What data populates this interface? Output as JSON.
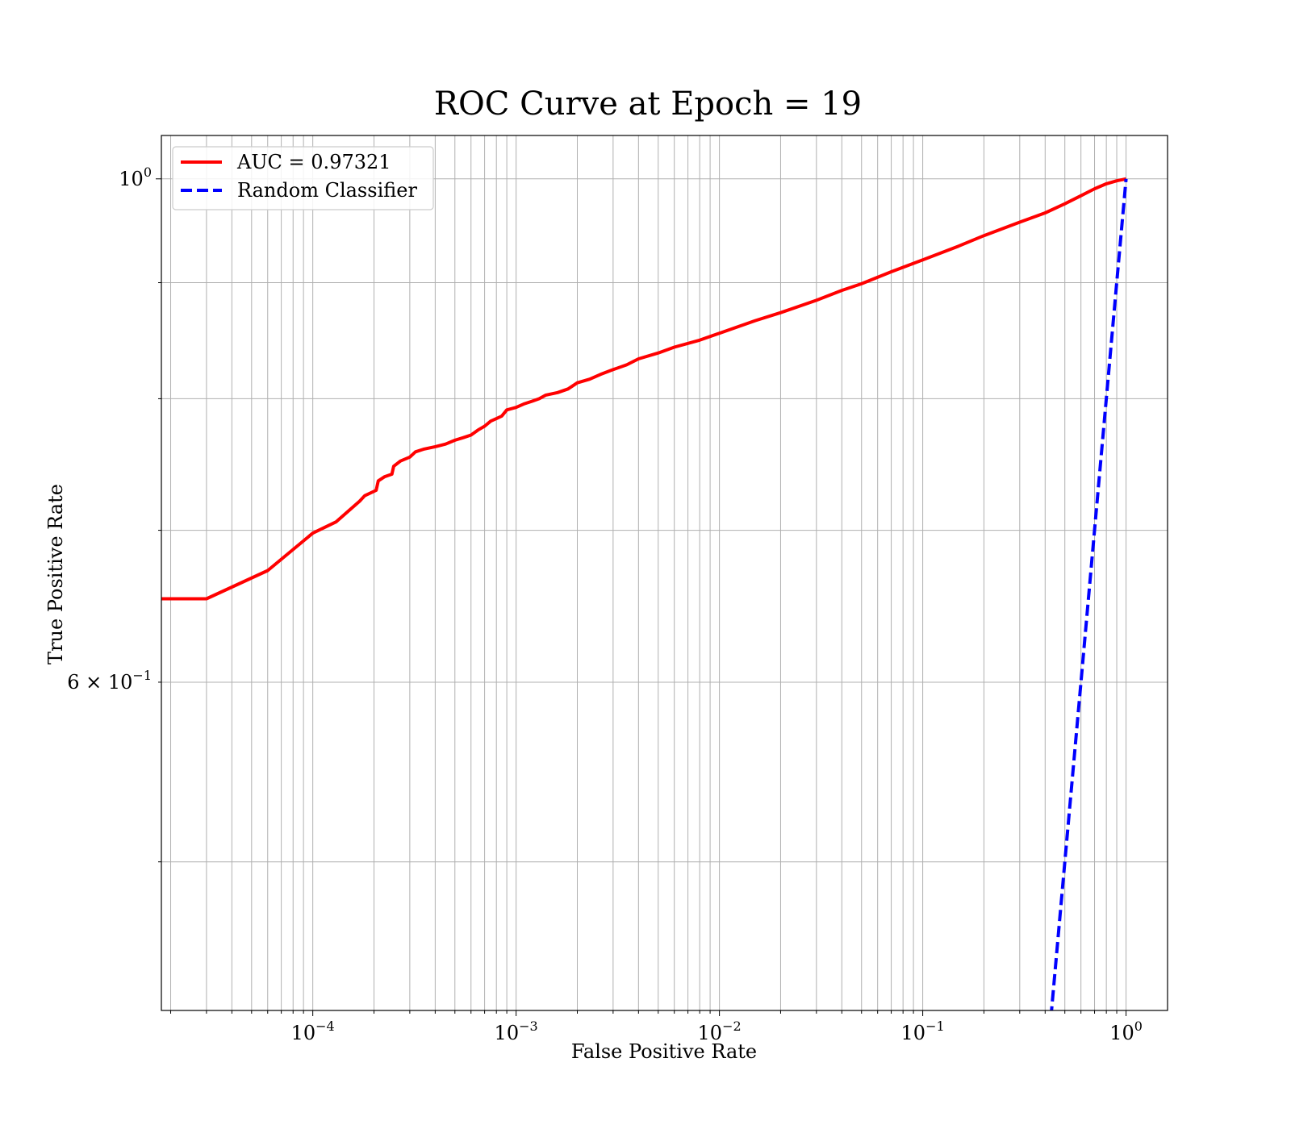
{
  "chart_data": {
    "type": "line",
    "title": "ROC Curve at Epoch = 19",
    "xlabel": "False Positive Rate",
    "ylabel": "True Positive Rate",
    "xscale": "log",
    "yscale": "log",
    "xlim": [
      1.8e-05,
      1.6
    ],
    "ylim": [
      0.43,
      1.045
    ],
    "grid": true,
    "grid_minor": true,
    "legend_position": "top-left",
    "x_ticks": [
      {
        "base": "10",
        "exp": "−4",
        "value": 0.0001
      },
      {
        "base": "10",
        "exp": "−3",
        "value": 0.001
      },
      {
        "base": "10",
        "exp": "−2",
        "value": 0.01
      },
      {
        "base": "10",
        "exp": "−1",
        "value": 0.1
      },
      {
        "base": "10",
        "exp": "0",
        "value": 1
      }
    ],
    "y_ticks": [
      {
        "base": "6 × 10",
        "exp": "−1",
        "value": 0.6
      },
      {
        "base": "10",
        "exp": "0",
        "value": 1
      }
    ],
    "series": [
      {
        "name": "AUC = 0.97321",
        "color": "#ff0000",
        "style": "solid",
        "x": [
          1.8e-05,
          3e-05,
          6e-05,
          0.0001,
          0.00013,
          0.00017,
          0.00018,
          0.000205,
          0.00021,
          0.000225,
          0.000245,
          0.00025,
          0.00027,
          0.0003,
          0.00032,
          0.00035,
          0.0004,
          0.00045,
          0.0005,
          0.00055,
          0.0006,
          0.00065,
          0.0007,
          0.00075,
          0.0008,
          0.00085,
          0.0009,
          0.001,
          0.0011,
          0.0012,
          0.0013,
          0.0014,
          0.0016,
          0.0018,
          0.002,
          0.0023,
          0.0026,
          0.003,
          0.0035,
          0.004,
          0.005,
          0.006,
          0.008,
          0.01,
          0.015,
          0.02,
          0.03,
          0.04,
          0.05,
          0.07,
          0.1,
          0.15,
          0.2,
          0.3,
          0.4,
          0.5,
          0.6,
          0.7,
          0.8,
          0.9,
          1.0
        ],
        "y": [
          0.653,
          0.653,
          0.672,
          0.698,
          0.706,
          0.721,
          0.725,
          0.729,
          0.736,
          0.739,
          0.741,
          0.747,
          0.751,
          0.754,
          0.758,
          0.76,
          0.762,
          0.764,
          0.767,
          0.769,
          0.771,
          0.775,
          0.778,
          0.782,
          0.784,
          0.786,
          0.791,
          0.793,
          0.796,
          0.798,
          0.8,
          0.803,
          0.805,
          0.808,
          0.813,
          0.816,
          0.82,
          0.824,
          0.828,
          0.833,
          0.838,
          0.843,
          0.849,
          0.855,
          0.866,
          0.873,
          0.884,
          0.893,
          0.899,
          0.91,
          0.921,
          0.934,
          0.944,
          0.957,
          0.966,
          0.975,
          0.983,
          0.99,
          0.995,
          0.998,
          1.0
        ]
      },
      {
        "name": "Random Classifier",
        "color": "#0000ff",
        "style": "dashed",
        "x": [
          0.4,
          0.45,
          0.5,
          0.6,
          0.7,
          0.8,
          0.9,
          1.0
        ],
        "y": [
          0.4,
          0.45,
          0.5,
          0.6,
          0.7,
          0.8,
          0.9,
          1.0
        ]
      }
    ]
  }
}
